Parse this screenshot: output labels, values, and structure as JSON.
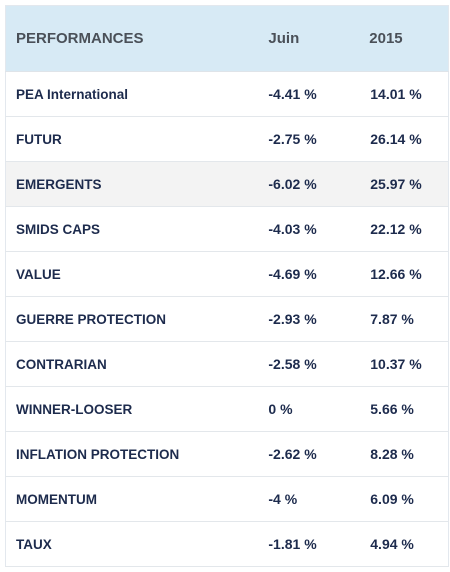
{
  "table": {
    "headers": {
      "name": "PERFORMANCES",
      "month": "Juin",
      "year": "2015"
    },
    "rows": [
      {
        "name": "PEA International",
        "month": "-4.41 %",
        "year": "14.01 %"
      },
      {
        "name": "FUTUR",
        "month": "-2.75 %",
        "year": "26.14 %"
      },
      {
        "name": "EMERGENTS",
        "month": "-6.02 %",
        "year": "25.97 %"
      },
      {
        "name": "SMIDS CAPS",
        "month": "-4.03 %",
        "year": "22.12 %"
      },
      {
        "name": "VALUE",
        "month": "-4.69 %",
        "year": "12.66 %"
      },
      {
        "name": "GUERRE PROTECTION",
        "month": "-2.93 %",
        "year": "7.87 %"
      },
      {
        "name": "CONTRARIAN",
        "month": "-2.58 %",
        "year": "10.37 %"
      },
      {
        "name": "WINNER-LOOSER",
        "month": "0 %",
        "year": "5.66 %"
      },
      {
        "name": "INFLATION PROTECTION",
        "month": "-2.62 %",
        "year": "8.28 %"
      },
      {
        "name": "MOMENTUM",
        "month": "-4 %",
        "year": "6.09 %"
      },
      {
        "name": "TAUX",
        "month": "-1.81 %",
        "year": "4.94 %"
      }
    ]
  },
  "colors": {
    "header_bg": "#d7eaf5",
    "header_text": "#4a5058",
    "row_text": "#1d2b4d",
    "row_alt_bg": "#f3f3f3",
    "border": "#e3e7eb"
  }
}
